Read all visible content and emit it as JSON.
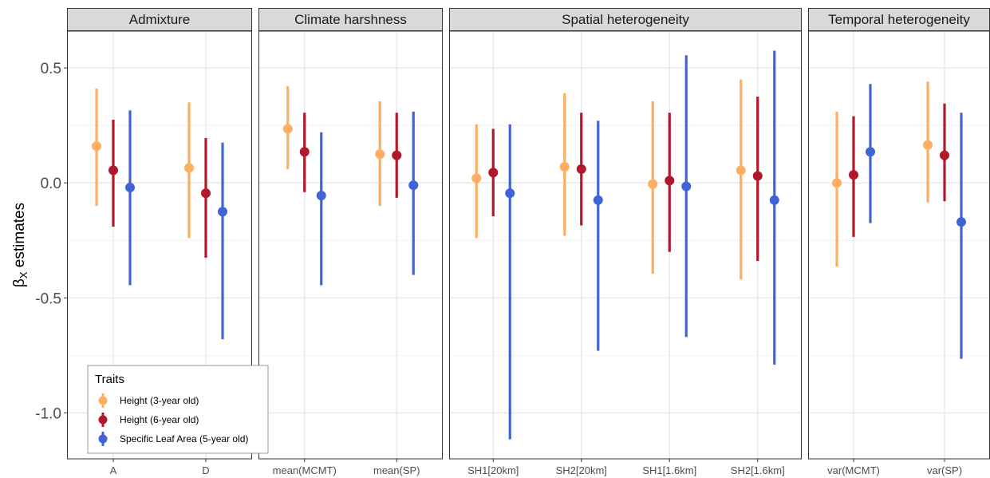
{
  "chart_data": {
    "type": "scatter",
    "subtype": "pointrange",
    "y_label_main": "β",
    "y_label_sub": "X",
    "y_label_rest": " estimates",
    "ylim": [
      -1.2,
      0.66
    ],
    "y_ticks": [
      0.5,
      0.0,
      -0.5,
      -1.0
    ],
    "y_tick_labels": [
      "0.5",
      "0.0",
      "-0.5",
      "-1.0"
    ],
    "grid": true,
    "legend": {
      "title": "Traits",
      "placement": "bottom-left",
      "entries": [
        {
          "label": "Height (3-year old)",
          "color": "#FDAE61"
        },
        {
          "label": "Height (6-year old)",
          "color": "#B2182B"
        },
        {
          "label": "Specific Leaf Area (5-year old)",
          "color": "#4063D8"
        }
      ]
    },
    "series_names": [
      "Height (3-year old)",
      "Height (6-year old)",
      "Specific Leaf Area (5-year old)"
    ],
    "panels": [
      {
        "title": "Admixture",
        "categories": [
          "A",
          "D"
        ],
        "estimates": [
          [
            {
              "y": 0.16,
              "lo": -0.1,
              "hi": 0.41
            },
            {
              "y": 0.055,
              "lo": -0.19,
              "hi": 0.275
            },
            {
              "y": -0.02,
              "lo": -0.445,
              "hi": 0.315
            }
          ],
          [
            {
              "y": 0.065,
              "lo": -0.24,
              "hi": 0.35
            },
            {
              "y": -0.045,
              "lo": -0.325,
              "hi": 0.195
            },
            {
              "y": -0.125,
              "lo": -0.68,
              "hi": 0.175
            }
          ]
        ]
      },
      {
        "title": "Climate harshness",
        "categories": [
          "mean(MCMT)",
          "mean(SP)"
        ],
        "estimates": [
          [
            {
              "y": 0.235,
              "lo": 0.06,
              "hi": 0.42
            },
            {
              "y": 0.135,
              "lo": -0.04,
              "hi": 0.305
            },
            {
              "y": -0.055,
              "lo": -0.445,
              "hi": 0.22
            }
          ],
          [
            {
              "y": 0.125,
              "lo": -0.1,
              "hi": 0.355
            },
            {
              "y": 0.12,
              "lo": -0.065,
              "hi": 0.305
            },
            {
              "y": -0.01,
              "lo": -0.4,
              "hi": 0.31
            }
          ]
        ]
      },
      {
        "title": "Spatial heterogeneity",
        "categories": [
          "SH1[20km]",
          "SH2[20km]",
          "SH1[1.6km]",
          "SH2[1.6km]"
        ],
        "estimates": [
          [
            {
              "y": 0.02,
              "lo": -0.24,
              "hi": 0.255
            },
            {
              "y": 0.045,
              "lo": -0.145,
              "hi": 0.235
            },
            {
              "y": -0.045,
              "lo": -1.115,
              "hi": 0.255
            }
          ],
          [
            {
              "y": 0.07,
              "lo": -0.23,
              "hi": 0.39
            },
            {
              "y": 0.06,
              "lo": -0.185,
              "hi": 0.305
            },
            {
              "y": -0.075,
              "lo": -0.73,
              "hi": 0.27
            }
          ],
          [
            {
              "y": -0.005,
              "lo": -0.395,
              "hi": 0.355
            },
            {
              "y": 0.01,
              "lo": -0.3,
              "hi": 0.305
            },
            {
              "y": -0.015,
              "lo": -0.67,
              "hi": 0.555
            }
          ],
          [
            {
              "y": 0.055,
              "lo": -0.42,
              "hi": 0.45
            },
            {
              "y": 0.03,
              "lo": -0.34,
              "hi": 0.375
            },
            {
              "y": -0.075,
              "lo": -0.79,
              "hi": 0.575
            }
          ]
        ]
      },
      {
        "title": "Temporal heterogeneity",
        "categories": [
          "var(MCMT)",
          "var(SP)"
        ],
        "estimates": [
          [
            {
              "y": 0.0,
              "lo": -0.365,
              "hi": 0.31
            },
            {
              "y": 0.035,
              "lo": -0.235,
              "hi": 0.29
            },
            {
              "y": 0.135,
              "lo": -0.175,
              "hi": 0.43
            }
          ],
          [
            {
              "y": 0.165,
              "lo": -0.085,
              "hi": 0.44
            },
            {
              "y": 0.12,
              "lo": -0.08,
              "hi": 0.345
            },
            {
              "y": -0.17,
              "lo": -0.765,
              "hi": 0.305
            }
          ]
        ]
      }
    ]
  }
}
